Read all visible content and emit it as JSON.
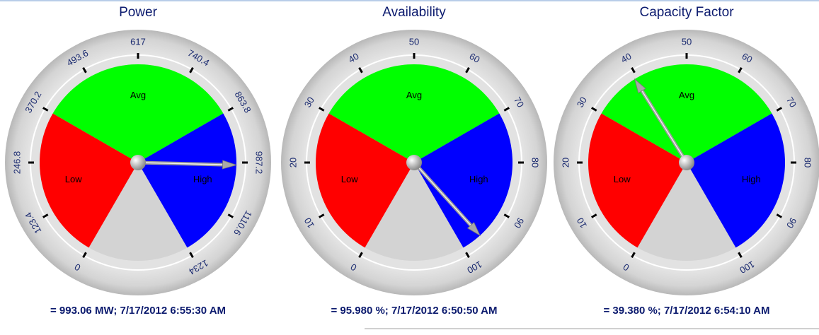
{
  "chart_data": [
    {
      "type": "gauge",
      "title": "Power",
      "ylim": [
        0,
        1234
      ],
      "yticks": [
        0,
        123.4,
        246.8,
        370.2,
        493.6,
        617,
        740.4,
        863.8,
        987.2,
        1110.6,
        1234
      ],
      "bands": [
        {
          "name": "Low",
          "color": "#ff0000",
          "range": [
            0,
            370.2
          ]
        },
        {
          "name": "Avg",
          "color": "#00ff00",
          "range": [
            370.2,
            863.8
          ]
        },
        {
          "name": "High",
          "color": "#0000ff",
          "range": [
            863.8,
            1234
          ]
        }
      ],
      "value": 993.06,
      "value_label": "= 993.06 MW; 7/17/2012 6:55:30 AM"
    },
    {
      "type": "gauge",
      "title": "Availability",
      "ylim": [
        0,
        100
      ],
      "yticks": [
        0,
        10,
        20,
        30,
        40,
        50,
        60,
        70,
        80,
        90,
        100
      ],
      "bands": [
        {
          "name": "Low",
          "color": "#ff0000",
          "range": [
            0,
            30
          ]
        },
        {
          "name": "Avg",
          "color": "#00ff00",
          "range": [
            30,
            70
          ]
        },
        {
          "name": "High",
          "color": "#0000ff",
          "range": [
            70,
            100
          ]
        }
      ],
      "value": 95.98,
      "value_label": "= 95.980 %; 7/17/2012 6:50:50 AM"
    },
    {
      "type": "gauge",
      "title": "Capacity Factor",
      "ylim": [
        0,
        100
      ],
      "yticks": [
        0,
        10,
        20,
        30,
        40,
        50,
        60,
        70,
        80,
        90,
        100
      ],
      "bands": [
        {
          "name": "Low",
          "color": "#ff0000",
          "range": [
            0,
            30
          ]
        },
        {
          "name": "Avg",
          "color": "#00ff00",
          "range": [
            30,
            70
          ]
        },
        {
          "name": "High",
          "color": "#0000ff",
          "range": [
            70,
            100
          ]
        }
      ],
      "value": 39.38,
      "value_label": "= 39.380 %; 7/17/2012 6:54:10 AM"
    }
  ]
}
